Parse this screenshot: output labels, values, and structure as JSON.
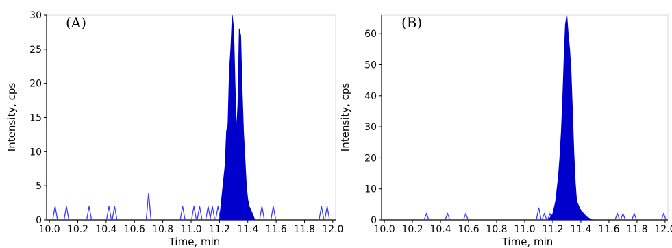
{
  "chart_data": [
    {
      "type": "area",
      "panel_label": "(A)",
      "xlabel": "Time, min",
      "ylabel": "Intensity, cps",
      "xlim": [
        9.98,
        12.02
      ],
      "ylim": [
        0,
        30
      ],
      "xticks": [
        "10.0",
        "10.2",
        "10.4",
        "10.6",
        "10.8",
        "11.0",
        "11.2",
        "11.4",
        "11.6",
        "11.8",
        "12.0"
      ],
      "yticks": [
        "0",
        "5",
        "10",
        "15",
        "20",
        "25",
        "30"
      ],
      "grid": false,
      "colors": {
        "fill": "#0000cc",
        "outline": "#3a3aff"
      },
      "peak_region": [
        11.2,
        11.45
      ],
      "background_spikes": [
        {
          "x": 10.04,
          "y": 2
        },
        {
          "x": 10.12,
          "y": 2
        },
        {
          "x": 10.28,
          "y": 2
        },
        {
          "x": 10.42,
          "y": 2
        },
        {
          "x": 10.46,
          "y": 2
        },
        {
          "x": 10.7,
          "y": 4
        },
        {
          "x": 10.94,
          "y": 2
        },
        {
          "x": 11.02,
          "y": 2
        },
        {
          "x": 11.06,
          "y": 2
        },
        {
          "x": 11.12,
          "y": 2
        },
        {
          "x": 11.15,
          "y": 2
        },
        {
          "x": 11.19,
          "y": 2
        },
        {
          "x": 11.5,
          "y": 2
        },
        {
          "x": 11.58,
          "y": 2
        },
        {
          "x": 11.92,
          "y": 2
        },
        {
          "x": 11.96,
          "y": 2
        }
      ],
      "peak": [
        [
          11.2,
          0
        ],
        [
          11.22,
          4
        ],
        [
          11.24,
          8
        ],
        [
          11.25,
          13
        ],
        [
          11.26,
          14
        ],
        [
          11.27,
          22
        ],
        [
          11.28,
          25
        ],
        [
          11.29,
          30
        ],
        [
          11.3,
          28
        ],
        [
          11.31,
          20
        ],
        [
          11.32,
          13
        ],
        [
          11.33,
          17
        ],
        [
          11.34,
          28
        ],
        [
          11.35,
          27
        ],
        [
          11.36,
          19
        ],
        [
          11.37,
          13
        ],
        [
          11.38,
          9
        ],
        [
          11.39,
          5
        ],
        [
          11.4,
          3
        ],
        [
          11.41,
          2
        ],
        [
          11.43,
          1
        ],
        [
          11.45,
          0
        ]
      ]
    },
    {
      "type": "area",
      "panel_label": "(B)",
      "xlabel": "Time, min",
      "ylabel": "Intensity, cps",
      "xlim": [
        9.98,
        12.02
      ],
      "ylim": [
        0,
        66
      ],
      "xticks": [
        "10.0",
        "10.2",
        "10.4",
        "10.6",
        "10.8",
        "11.0",
        "11.2",
        "11.4",
        "11.6",
        "11.8",
        "12.0"
      ],
      "yticks": [
        "0",
        "10",
        "20",
        "30",
        "40",
        "50",
        "60"
      ],
      "grid": false,
      "colors": {
        "fill": "#0000cc",
        "outline": "#3a3aff"
      },
      "peak_region": [
        11.17,
        11.48
      ],
      "background_spikes": [
        {
          "x": 10.3,
          "y": 2
        },
        {
          "x": 10.45,
          "y": 2
        },
        {
          "x": 10.58,
          "y": 2
        },
        {
          "x": 11.1,
          "y": 4
        },
        {
          "x": 11.14,
          "y": 2
        },
        {
          "x": 11.18,
          "y": 2
        },
        {
          "x": 11.42,
          "y": 2
        },
        {
          "x": 11.66,
          "y": 2
        },
        {
          "x": 11.7,
          "y": 2
        },
        {
          "x": 11.78,
          "y": 2
        },
        {
          "x": 11.99,
          "y": 2
        }
      ],
      "peak": [
        [
          11.17,
          0
        ],
        [
          11.2,
          2
        ],
        [
          11.22,
          6
        ],
        [
          11.24,
          14
        ],
        [
          11.25,
          20
        ],
        [
          11.26,
          28
        ],
        [
          11.27,
          38
        ],
        [
          11.28,
          52
        ],
        [
          11.29,
          63
        ],
        [
          11.3,
          66
        ],
        [
          11.31,
          60
        ],
        [
          11.32,
          55
        ],
        [
          11.33,
          48
        ],
        [
          11.34,
          35
        ],
        [
          11.35,
          22
        ],
        [
          11.36,
          12
        ],
        [
          11.37,
          6
        ],
        [
          11.38,
          5
        ],
        [
          11.4,
          3
        ],
        [
          11.42,
          2
        ],
        [
          11.44,
          1
        ],
        [
          11.48,
          0
        ]
      ]
    }
  ]
}
